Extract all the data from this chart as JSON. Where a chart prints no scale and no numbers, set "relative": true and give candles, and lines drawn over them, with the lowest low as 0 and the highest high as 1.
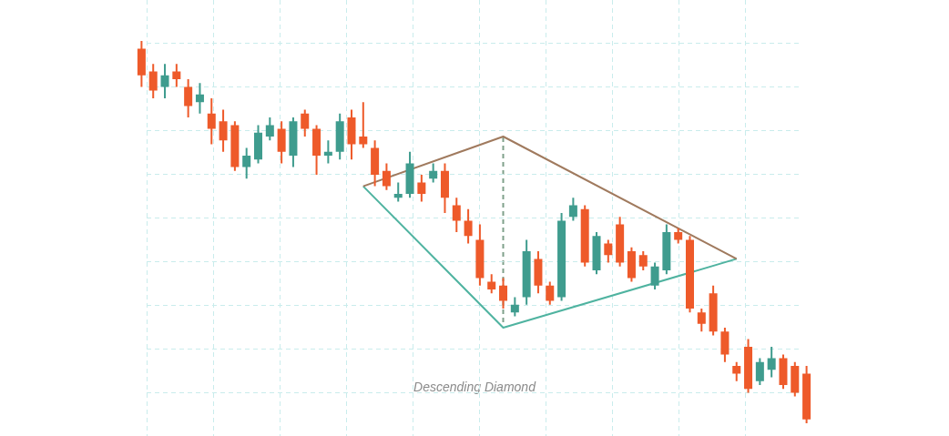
{
  "chart_data": {
    "type": "candlestick",
    "relative": true,
    "grid": true,
    "legend": false,
    "annotations": [
      "Descending Diamond"
    ],
    "series": [
      {
        "type": "line",
        "color": "#a07a5e",
        "values": [
          null,
          null,
          null,
          null,
          null,
          null,
          null,
          null,
          null,
          null,
          null,
          null,
          null,
          null,
          null,
          null,
          null,
          null,
          null,
          0.62,
          null,
          null,
          null,
          null,
          null,
          null,
          null,
          null,
          null,
          null,
          null,
          0.75,
          null,
          null,
          null,
          null,
          null,
          null,
          null,
          null,
          null,
          null,
          null,
          null,
          null,
          null,
          null,
          null,
          null,
          null,
          null,
          0.43,
          null,
          null,
          null,
          null,
          null,
          null
        ]
      },
      {
        "type": "line",
        "color": "#4fb3a0",
        "values": [
          null,
          null,
          null,
          null,
          null,
          null,
          null,
          null,
          null,
          null,
          null,
          null,
          null,
          null,
          null,
          null,
          null,
          null,
          null,
          0.62,
          null,
          null,
          null,
          null,
          null,
          null,
          null,
          null,
          null,
          null,
          null,
          0.25,
          null,
          null,
          null,
          null,
          null,
          null,
          null,
          null,
          null,
          null,
          null,
          null,
          null,
          null,
          null,
          null,
          null,
          null,
          null,
          0.43,
          null,
          null,
          null,
          null,
          null,
          null
        ]
      }
    ],
    "categories": [
      null,
      null,
      null,
      null,
      null,
      null,
      null,
      null,
      null,
      null,
      null,
      null,
      null,
      null,
      null,
      null,
      null,
      null,
      null,
      null,
      null,
      null,
      null,
      null,
      null,
      null,
      null,
      null,
      null,
      null,
      null,
      null,
      null,
      null,
      null,
      null,
      null,
      null,
      null,
      null,
      null,
      null,
      null,
      null,
      null,
      null,
      null,
      null,
      null,
      null,
      null,
      null,
      null,
      null,
      null,
      null,
      null,
      null
    ],
    "ohlc": [
      [
        0.98,
        1,
        0.88,
        0.91
      ],
      [
        0.92,
        0.94,
        0.85,
        0.87
      ],
      [
        0.88,
        0.94,
        0.85,
        0.91
      ],
      [
        0.92,
        0.94,
        0.88,
        0.9
      ],
      [
        0.88,
        0.9,
        0.8,
        0.83
      ],
      [
        0.84,
        0.89,
        0.81,
        0.86
      ],
      [
        0.81,
        0.85,
        0.73,
        0.77
      ],
      [
        0.79,
        0.82,
        0.71,
        0.74
      ],
      [
        0.78,
        0.79,
        0.66,
        0.67
      ],
      [
        0.67,
        0.72,
        0.64,
        0.7
      ],
      [
        0.69,
        0.78,
        0.68,
        0.76
      ],
      [
        0.75,
        0.8,
        0.74,
        0.78
      ],
      [
        0.77,
        0.79,
        0.68,
        0.71
      ],
      [
        0.7,
        0.8,
        0.67,
        0.79
      ],
      [
        0.81,
        0.82,
        0.75,
        0.77
      ],
      [
        0.77,
        0.78,
        0.65,
        0.7
      ],
      [
        0.7,
        0.74,
        0.68,
        0.71
      ],
      [
        0.71,
        0.81,
        0.69,
        0.79
      ],
      [
        0.8,
        0.82,
        0.69,
        0.73
      ],
      [
        0.75,
        0.84,
        0.72,
        0.73
      ],
      [
        0.72,
        0.74,
        0.62,
        0.65
      ],
      [
        0.66,
        0.68,
        0.61,
        0.62
      ],
      [
        0.59,
        0.63,
        0.58,
        0.6
      ],
      [
        0.6,
        0.71,
        0.59,
        0.68
      ],
      [
        0.63,
        0.65,
        0.58,
        0.6
      ],
      [
        0.64,
        0.68,
        0.63,
        0.66
      ],
      [
        0.66,
        0.68,
        0.55,
        0.59
      ],
      [
        0.57,
        0.59,
        0.5,
        0.53
      ],
      [
        0.53,
        0.56,
        0.47,
        0.49
      ],
      [
        0.48,
        0.52,
        0.36,
        0.38
      ],
      [
        0.37,
        0.39,
        0.34,
        0.35
      ],
      [
        0.36,
        0.38,
        0.3,
        0.32
      ],
      [
        0.29,
        0.33,
        0.28,
        0.31
      ],
      [
        0.33,
        0.48,
        0.31,
        0.45
      ],
      [
        0.43,
        0.45,
        0.34,
        0.36
      ],
      [
        0.36,
        0.37,
        0.31,
        0.32
      ],
      [
        0.33,
        0.55,
        0.32,
        0.53
      ],
      [
        0.54,
        0.59,
        0.53,
        0.57
      ],
      [
        0.56,
        0.57,
        0.41,
        0.42
      ],
      [
        0.4,
        0.5,
        0.39,
        0.49
      ],
      [
        0.47,
        0.48,
        0.42,
        0.44
      ],
      [
        0.52,
        0.54,
        0.41,
        0.42
      ],
      [
        0.45,
        0.46,
        0.37,
        0.38
      ],
      [
        0.44,
        0.45,
        0.4,
        0.41
      ],
      [
        0.36,
        0.42,
        0.35,
        0.41
      ],
      [
        0.4,
        0.52,
        0.39,
        0.5
      ],
      [
        0.5,
        0.51,
        0.47,
        0.48
      ],
      [
        0.48,
        0.49,
        0.29,
        0.3
      ],
      [
        0.29,
        0.3,
        0.24,
        0.26
      ],
      [
        0.34,
        0.36,
        0.23,
        0.24
      ],
      [
        0.24,
        0.25,
        0.16,
        0.18
      ],
      [
        0.15,
        0.16,
        0.11,
        0.13
      ],
      [
        0.2,
        0.22,
        0.08,
        0.09
      ],
      [
        0.11,
        0.17,
        0.1,
        0.16
      ],
      [
        0.14,
        0.2,
        0.12,
        0.17
      ],
      [
        0.17,
        0.18,
        0.09,
        0.1
      ],
      [
        0.15,
        0.16,
        0.07,
        0.08
      ],
      [
        0.13,
        0.15,
        0,
        0.01
      ]
    ],
    "colors": [
      "#ee5a2a",
      "#ee5a2a",
      "#3f9c8e",
      "#ee5a2a",
      "#ee5a2a",
      "#3f9c8e",
      "#ee5a2a",
      "#ee5a2a",
      "#ee5a2a",
      "#3f9c8e",
      "#3f9c8e",
      "#3f9c8e",
      "#ee5a2a",
      "#3f9c8e",
      "#ee5a2a",
      "#ee5a2a",
      "#3f9c8e",
      "#3f9c8e",
      "#ee5a2a",
      "#ee5a2a",
      "#ee5a2a",
      "#ee5a2a",
      "#3f9c8e",
      "#3f9c8e",
      "#ee5a2a",
      "#3f9c8e",
      "#ee5a2a",
      "#ee5a2a",
      "#ee5a2a",
      "#ee5a2a",
      "#ee5a2a",
      "#ee5a2a",
      "#3f9c8e",
      "#3f9c8e",
      "#ee5a2a",
      "#ee5a2a",
      "#3f9c8e",
      "#3f9c8e",
      "#ee5a2a",
      "#3f9c8e",
      "#ee5a2a",
      "#ee5a2a",
      "#ee5a2a",
      "#ee5a2a",
      "#3f9c8e",
      "#3f9c8e",
      "#ee5a2a",
      "#ee5a2a",
      "#ee5a2a",
      "#ee5a2a",
      "#ee5a2a",
      "#ee5a2a",
      "#ee5a2a",
      "#3f9c8e",
      "#3f9c8e",
      "#ee5a2a",
      "#ee5a2a",
      "#ee5a2a"
    ]
  }
}
